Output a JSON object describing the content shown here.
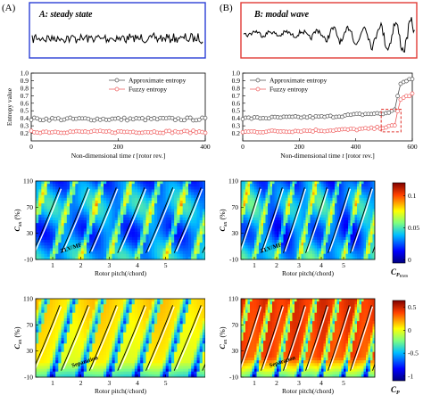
{
  "figure": {
    "panel_labels": [
      "(A)",
      "(B)"
    ]
  },
  "chart_data": [
    {
      "id": "A-signal",
      "type": "line",
      "title": "A: steady state",
      "border_color": "#2a3fd6",
      "pattern": "steady"
    },
    {
      "id": "B-signal",
      "type": "line",
      "title": "B: modal wave",
      "border_color": "#e23b35",
      "pattern": "modal"
    },
    {
      "id": "A-entropy",
      "type": "line",
      "xlabel_prefix": "Non-dimensional time ",
      "xlabel_var": "t",
      "xlabel_suffix": " [rotor rev.]",
      "ylabel": "Entropy value",
      "xlim": [
        0,
        400
      ],
      "ylim": [
        0.1,
        1.0
      ],
      "xticks": [
        0,
        200,
        400
      ],
      "yticks": [
        0.2,
        0.3,
        0.4,
        0.5,
        0.6,
        0.7,
        0.8,
        0.9,
        1.0
      ],
      "legend_position": "top-right",
      "series": [
        {
          "name": "Approximate entropy",
          "color": "#505050",
          "marker": "open-circle",
          "level": 0.39,
          "noise": 0.02
        },
        {
          "name": "Fuzzy entropy",
          "color": "#ef5a5a",
          "marker": "open-circle",
          "level": 0.22,
          "noise": 0.015
        }
      ]
    },
    {
      "id": "B-entropy",
      "type": "line",
      "xlabel_prefix": "Non-dimensional time ",
      "xlabel_var": "t",
      "xlabel_suffix": " [rotor rev.]",
      "ylabel": "",
      "xlim": [
        0,
        600
      ],
      "ylim": [
        0.1,
        1.0
      ],
      "xticks": [
        0,
        200,
        400,
        600
      ],
      "yticks": [
        0.2,
        0.3,
        0.4,
        0.5,
        0.6,
        0.7,
        0.8,
        0.9,
        1.0
      ],
      "legend_position": "top-left",
      "highlight_box": {
        "x": [
          490,
          560
        ],
        "y": [
          0.22,
          0.52
        ],
        "color": "#e23b35"
      },
      "series": [
        {
          "name": "Approximate entropy",
          "color": "#505050",
          "marker": "open-circle",
          "keypoints": [
            [
              0,
              0.4
            ],
            [
              300,
              0.42
            ],
            [
              450,
              0.46
            ],
            [
              500,
              0.46
            ],
            [
              540,
              0.51
            ],
            [
              555,
              0.86
            ],
            [
              600,
              0.92
            ]
          ]
        },
        {
          "name": "Fuzzy entropy",
          "color": "#ef5a5a",
          "marker": "open-circle",
          "keypoints": [
            [
              0,
              0.22
            ],
            [
              300,
              0.24
            ],
            [
              450,
              0.26
            ],
            [
              500,
              0.28
            ],
            [
              540,
              0.3
            ],
            [
              555,
              0.65
            ],
            [
              600,
              0.72
            ]
          ]
        }
      ]
    },
    {
      "id": "A-cp-rms",
      "type": "heatmap",
      "xlabel": "Rotor pitch(/chord)",
      "ylabel_main": "C",
      "ylabel_sub": "ax",
      "ylabel_unit": " (%)",
      "xticks": [
        1,
        2,
        3,
        4,
        5
      ],
      "yticks": [
        -10,
        30,
        70,
        110
      ],
      "ylim": [
        -10,
        110
      ],
      "xlim": [
        0.4,
        6.4
      ],
      "colormap": "jet",
      "field": "rms",
      "annotation": "TLV/MF"
    },
    {
      "id": "B-cp-rms",
      "type": "heatmap",
      "xlabel": "Rotor pitch(/chord)",
      "ylabel_main": "C",
      "ylabel_sub": "ax",
      "ylabel_unit": " (%)",
      "xticks": [
        1,
        2,
        3,
        4,
        5
      ],
      "yticks": [
        -10,
        30,
        70,
        110
      ],
      "ylim": [
        -10,
        110
      ],
      "xlim": [
        0.4,
        6.4
      ],
      "colormap": "jet",
      "field": "rms",
      "annotation": "TLV/MF",
      "colorbar": {
        "ticks": [
          0,
          0.05,
          0.1
        ],
        "tick_labels": [
          "0",
          "0.05",
          "0.1"
        ],
        "label_main": "C",
        "label_sub": "P",
        "label_subsub": "RMS"
      }
    },
    {
      "id": "A-cp",
      "type": "heatmap",
      "xlabel": "Rotor pitch(/chord)",
      "ylabel_main": "C",
      "ylabel_sub": "ax",
      "ylabel_unit": " (%)",
      "xticks": [
        1,
        2,
        3,
        4,
        5
      ],
      "yticks": [
        -10,
        30,
        70,
        110
      ],
      "ylim": [
        -10,
        110
      ],
      "xlim": [
        0.4,
        6.4
      ],
      "colormap": "jet",
      "field": "mean_steady",
      "annotation": "Separation"
    },
    {
      "id": "B-cp",
      "type": "heatmap",
      "xlabel": "Rotor pitch(/chord)",
      "ylabel_main": "C",
      "ylabel_sub": "ax",
      "ylabel_unit": " (%)",
      "xticks": [
        1,
        2,
        3,
        4,
        5
      ],
      "yticks": [
        -10,
        30,
        70,
        110
      ],
      "ylim": [
        -10,
        110
      ],
      "xlim": [
        0.4,
        6.4
      ],
      "colormap": "jet",
      "field": "mean_modal",
      "annotation": "Separation",
      "colorbar": {
        "ticks": [
          0.5,
          0,
          -0.5,
          -1
        ],
        "tick_labels": [
          "0.5",
          "0",
          "-0.5",
          "-1"
        ],
        "label_main": "C",
        "label_sub": "P"
      }
    }
  ]
}
